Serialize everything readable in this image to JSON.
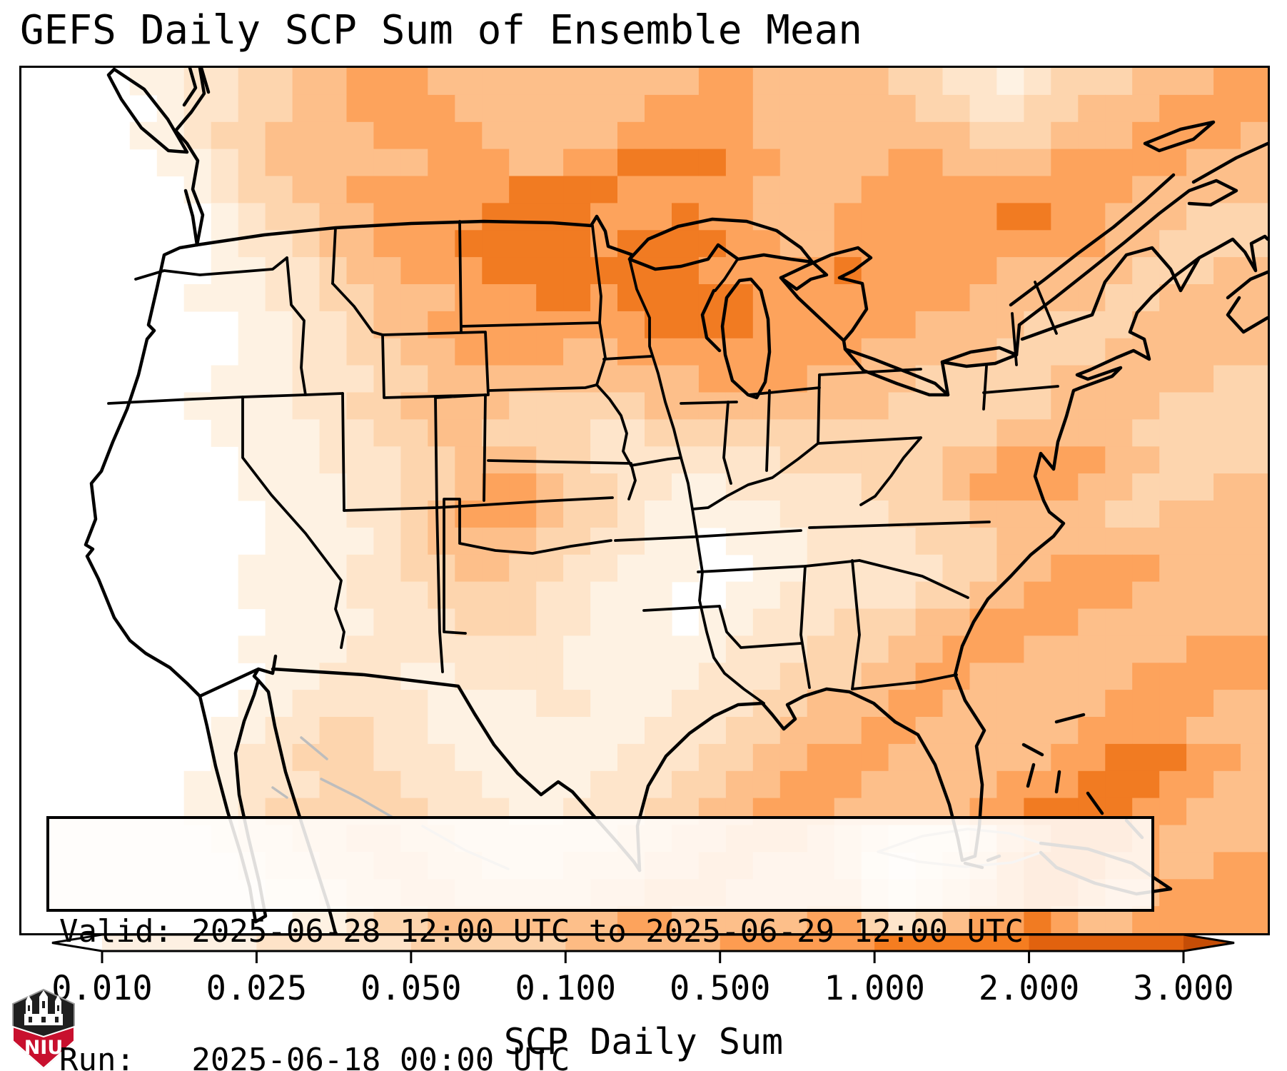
{
  "title": "GEFS Daily SCP Sum of Ensemble Mean",
  "info_box": {
    "valid_line": "Valid: 2025-06-28 12:00 UTC to 2025-06-29 12:00 UTC",
    "run_line": "Run:   2025-06-18 00:00 UTC"
  },
  "colorbar": {
    "label": "SCP Daily Sum",
    "ticks": [
      "0.010",
      "0.025",
      "0.050",
      "0.100",
      "0.500",
      "1.000",
      "2.000",
      "3.000"
    ],
    "segment_colors": [
      "#fdf0e2",
      "#fee3c8",
      "#fdd2a9",
      "#fdbb83",
      "#fd9c51",
      "#f57d20",
      "#e1620e"
    ],
    "extend_left_color": "#ffffff",
    "extend_right_color": "#c54d06",
    "outline_color": "#000000"
  },
  "logo": {
    "text": "NIU",
    "shield_color": "#1f1f1f",
    "band_color": "#c8102e"
  },
  "chart_data": {
    "type": "heatmap",
    "title": "GEFS Daily SCP Sum of Ensemble Mean",
    "colorbar_label": "SCP Daily Sum",
    "valid": "2025-06-28 12:00 UTC to 2025-06-29 12:00 UTC",
    "run": "2025-06-18 00:00 UTC",
    "levels": [
      "<0.010",
      "0.010-0.025",
      "0.025-0.050",
      "0.050-0.100",
      "0.100-0.500",
      "0.500-1.000",
      "1.000-2.000",
      "2.000-3.000",
      ">3.000"
    ],
    "palette": [
      "#ffffff",
      "#fef2e3",
      "#fee5cb",
      "#fdd5ae",
      "#fdbf8a",
      "#fda35c",
      "#f17b22",
      "#e0600c",
      "#c84d03"
    ],
    "legend_position": "bottom",
    "grid_cols": 46,
    "grid_rows": 32,
    "grid": [
      "0000112233445554444444444554444433221233344455",
      "0000012233445555444444455554444443322334445555",
      "0000112334444555544444555554444444433344455554",
      "0000011234444445554455666655444455444455555444",
      "0000001233445555556666555554444555555555544444",
      "0000000123344555566665556554445555556655444333",
      "0000000122344555666665666655445555555555443333",
      "0000000112234455566666666555556555554444433344",
      "0000001112233444555665666665555555544444334444",
      "0000000011223445555555566665555554444333344444",
      "0000000011223344555544555555555444443333444444",
      "0000000111222334444444444555544443333344444433",
      "0000001111223344443333344444444433333344443333",
      "0000000111122334433332233333333333334444433333",
      "0000000011122233444332222222333333445555443333",
      "0000000011112233455433221122222333455554433344",
      "0000000001112234555433211111222233344444334444",
      "0000000001111234444332211011122223334444444444",
      "0000000011112233443322111001122222334455554444",
      "0000000011112223333221110011222223344555544444",
      "0000000001111222333221110112223334455554444444",
      "0000000011112222222211111122233344555444444555",
      "0000000001122211222211111222333445544444455555",
      "0000000011222221111221112223344455444444555544",
      "0000000112233221111111122233444554444445555444",
      "0000000122333222111111222334455544444455666554",
      "0000001122233322211112223344555444445556665544",
      "0000001123333332221122233445554444455666655444",
      "0000000122334433222222334455543211124566654444",
      "0000000012233443322233344554443101235666554455",
      "0000000001123344333334455544444212345665445555",
      "0000000000112334444444554444455323455654455555"
    ]
  }
}
